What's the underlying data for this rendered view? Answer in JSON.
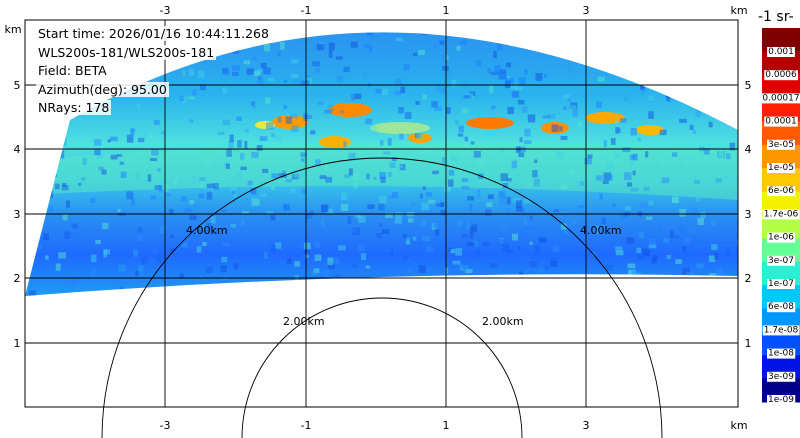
{
  "info": {
    "start_time": "Start time: 2026/01/16 10:44:11.268",
    "instrument": "WLS200s-181/WLS200s-181",
    "field": "Field: BETA",
    "azimuth": "Azimuth(deg): 95.00",
    "nrays": "NRays: 178"
  },
  "axes": {
    "x_unit": "km",
    "y_unit": "km",
    "x_ticks": [
      "-3",
      "-1",
      "1",
      "3"
    ],
    "x_tick_values": [
      -3,
      -1,
      1,
      3
    ],
    "y_ticks": [
      "1",
      "2",
      "3",
      "4",
      "5"
    ],
    "y_tick_values": [
      1,
      2,
      3,
      4,
      5
    ],
    "xlim": [
      -5.0,
      5.45
    ],
    "ylim": [
      0.0,
      6.3
    ]
  },
  "range_rings": [
    {
      "label": "2.00km",
      "radius_km": 2
    },
    {
      "label": "4.00km",
      "radius_km": 4
    }
  ],
  "colorbar": {
    "title": "-1 sr-",
    "labels": [
      "0.001",
      "0.0006",
      "0.00017",
      "0.0001",
      "3e-05",
      "1e-05",
      "6e-06",
      "1.7e-06",
      "1e-06",
      "3e-07",
      "1e-07",
      "6e-08",
      "1.7e-08",
      "1e-08",
      "3e-09",
      "1e-09"
    ],
    "colors": [
      "#800000",
      "#b20000",
      "#e00000",
      "#ff1e00",
      "#ff5a00",
      "#ff9600",
      "#ffc800",
      "#f2f200",
      "#b4ff46",
      "#64ff96",
      "#28f0d2",
      "#00c8ff",
      "#0096ff",
      "#0050ff",
      "#0014e6",
      "#00008c"
    ]
  },
  "colors": {
    "background": "#ffffff",
    "grid": "#000000",
    "low_signal": "#1a6fff",
    "mid_signal": "#2ad8e8",
    "high_signal": "#ff8a00"
  }
}
